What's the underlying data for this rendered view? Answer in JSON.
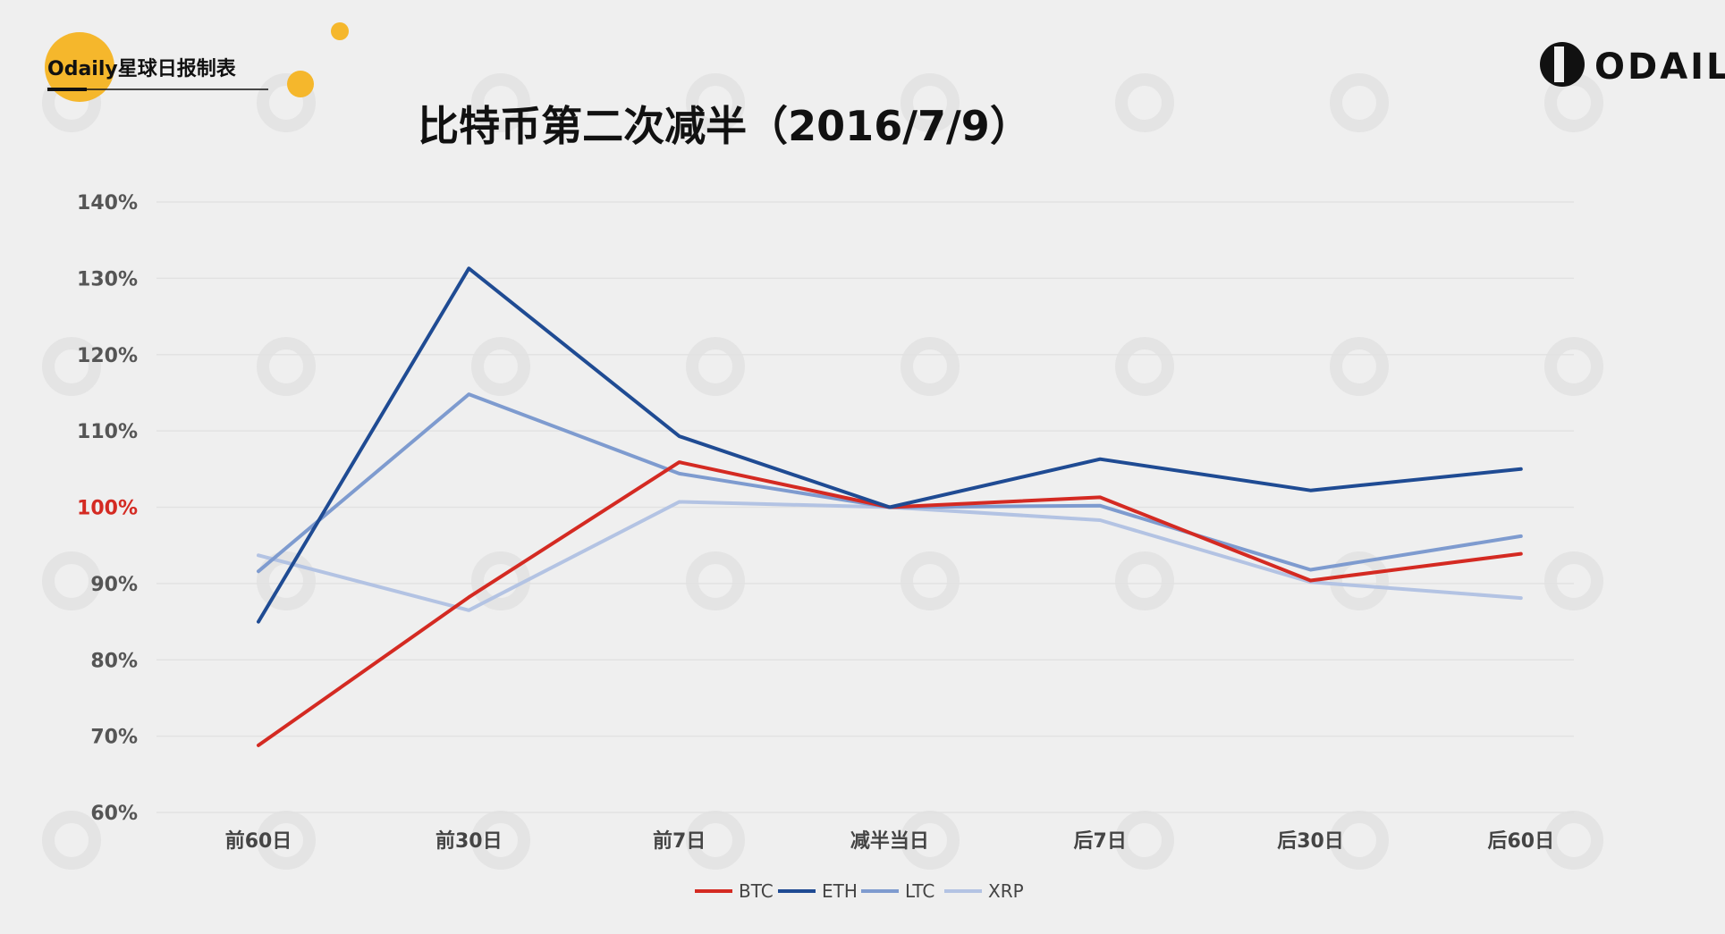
{
  "brand": {
    "label": "Odaily星球日报制表",
    "logo_text": "ODAILY",
    "accent": "#f5b72c"
  },
  "chart_data": {
    "type": "line",
    "title": "比特币第二次减半（2016/7/9）",
    "categories": [
      "前60日",
      "前30日",
      "前7日",
      "减半当日",
      "后7日",
      "后30日",
      "后60日"
    ],
    "y_ticks": [
      "140%",
      "130%",
      "120%",
      "110%",
      "100%",
      "90%",
      "80%",
      "70%",
      "60%"
    ],
    "highlight_tick": "100%",
    "ylim": [
      60,
      140
    ],
    "grid": true,
    "legend_position": "bottom",
    "series": [
      {
        "name": "BTC",
        "color": "#d42a22",
        "values": [
          68.8,
          88.2,
          105.9,
          100,
          101.3,
          90.4,
          93.9
        ]
      },
      {
        "name": "ETH",
        "color": "#1f4b93",
        "values": [
          85,
          131.3,
          109.3,
          100,
          106.3,
          102.2,
          105
        ]
      },
      {
        "name": "LTC",
        "color": "#7e9bcf",
        "values": [
          91.6,
          114.8,
          104.4,
          100,
          100.2,
          91.8,
          96.2
        ]
      },
      {
        "name": "XRP",
        "color": "#b3c3e3",
        "values": [
          93.7,
          86.5,
          100.7,
          100,
          98.3,
          90.2,
          88.1
        ]
      }
    ]
  }
}
